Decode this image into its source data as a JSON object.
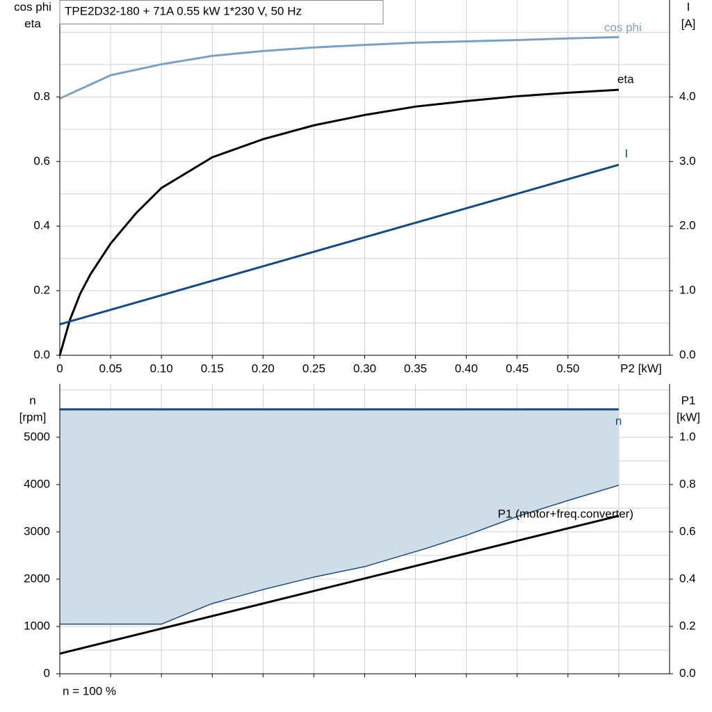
{
  "chart_data": [
    {
      "type": "line",
      "title": "TPE2D32-180 + 71A   0.55 kW   1*230 V, 50 Hz",
      "ylabel": [
        "cos phi",
        "eta"
      ],
      "y2label": [
        "I",
        "[A]"
      ],
      "xlim": [
        0,
        0.6
      ],
      "xticks": [
        0,
        0.05,
        {
          "value": 0.1,
          "label": "0.10"
        },
        0.15,
        {
          "value": 0.2,
          "label": "0.20"
        },
        0.25,
        {
          "value": 0.3,
          "label": "0.30"
        },
        0.35,
        {
          "value": 0.4,
          "label": "0.40"
        },
        0.45,
        {
          "value": 0.5,
          "label": "0.50"
        },
        {
          "value": 0.55,
          "label": "P2 [kW]"
        }
      ],
      "ylim": [
        0,
        1.1
      ],
      "yticks": [
        {
          "value": 0,
          "label": "0.0"
        },
        0.2,
        0.4,
        0.6,
        0.8
      ],
      "yminor": [
        0.1,
        0.3,
        0.5,
        0.7,
        0.9,
        1.0
      ],
      "y2lim": [
        0,
        5.5
      ],
      "y2ticks": [
        {
          "value": 0,
          "label": "0.0"
        },
        {
          "value": 1,
          "label": "1.0"
        },
        {
          "value": 2,
          "label": "2.0"
        },
        {
          "value": 3,
          "label": "3.0"
        },
        {
          "value": 4,
          "label": "4.0"
        }
      ],
      "grid": true,
      "series": [
        {
          "name": "cos phi",
          "color": "#7f9fc2",
          "x": [
            0,
            0.05,
            0.1,
            0.15,
            0.2,
            0.25,
            0.3,
            0.35,
            0.4,
            0.45,
            0.5,
            0.55
          ],
          "values": [
            0.795,
            0.867,
            0.901,
            0.927,
            0.942,
            0.953,
            0.961,
            0.968,
            0.972,
            0.976,
            0.981,
            0.985
          ]
        },
        {
          "name": "eta",
          "color": "#000000",
          "x": [
            0,
            0.01,
            0.02,
            0.03,
            0.05,
            0.075,
            0.1,
            0.15,
            0.2,
            0.25,
            0.3,
            0.35,
            0.4,
            0.45,
            0.5,
            0.55
          ],
          "values": [
            0,
            0.11,
            0.19,
            0.25,
            0.346,
            0.44,
            0.518,
            0.613,
            0.669,
            0.712,
            0.744,
            0.77,
            0.787,
            0.802,
            0.813,
            0.822
          ]
        },
        {
          "name": "I",
          "color": "#174a7c",
          "axis": "y2",
          "x": [
            0,
            0.55
          ],
          "values": [
            0.48,
            2.95
          ]
        }
      ]
    },
    {
      "type": "line",
      "ylabel": [
        "n",
        "[rpm]"
      ],
      "y2label": [
        "P1",
        "[kW]"
      ],
      "note": "n = 100 %",
      "xlim": [
        0,
        0.6
      ],
      "xgrid": [
        0,
        0.05,
        0.1,
        0.15,
        0.2,
        0.25,
        0.3,
        0.35,
        0.4,
        0.45,
        0.5,
        0.55
      ],
      "ylim": [
        0,
        6130
      ],
      "yticks": [
        0,
        1000,
        2000,
        3000,
        4000,
        5000
      ],
      "yminor": [
        500,
        1500,
        2500,
        3500,
        4500,
        5500,
        6000
      ],
      "y2lim": [
        0,
        1.226
      ],
      "y2ticks": [
        {
          "value": 0,
          "label": "0.0"
        },
        0.2,
        0.4,
        0.6,
        0.8,
        {
          "value": 1,
          "label": "1.0"
        }
      ],
      "grid": true,
      "series": [
        {
          "name": "n",
          "color": "#174a7c",
          "band_color": "#d0dce8",
          "x": [
            0,
            0.55
          ],
          "values": [
            5590,
            5590
          ],
          "min_x": [
            0,
            0.1,
            0.15,
            0.2,
            0.25,
            0.3,
            0.36,
            0.4,
            0.45,
            0.5,
            0.55
          ],
          "min_values": [
            1050,
            1050,
            1485,
            1780,
            2044,
            2265,
            2647,
            2926,
            3324,
            3662,
            3985
          ]
        },
        {
          "name": "P1 (motor+freq.converter)",
          "color": "#000000",
          "axis": "y2",
          "x": [
            0,
            0.55
          ],
          "values": [
            0.085,
            0.668
          ]
        }
      ]
    }
  ]
}
